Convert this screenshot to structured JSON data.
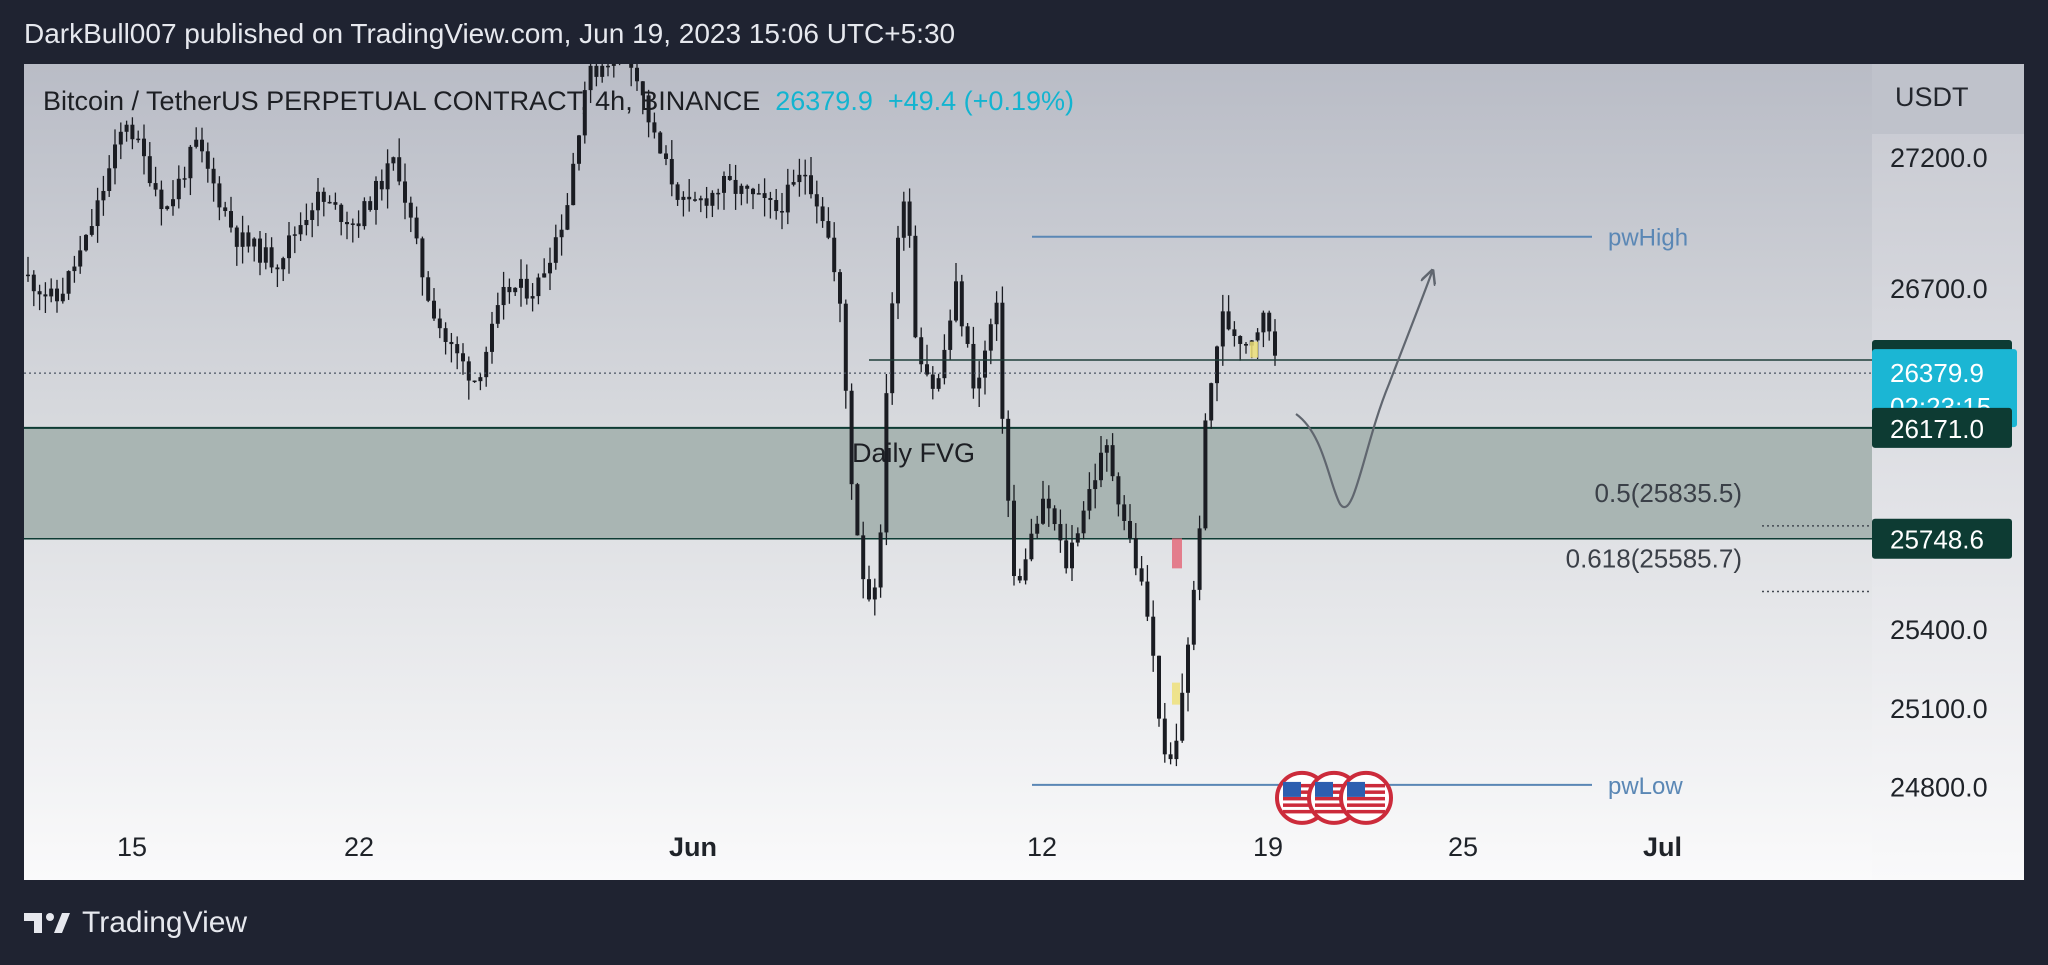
{
  "header": {
    "published": "DarkBull007 published on TradingView.com, Jun 19, 2023 15:06 UTC+5:30"
  },
  "symbol": {
    "name": "Bitcoin / TetherUS PERPETUAL CONTRACT, 4h, BINANCE",
    "price": "26379.9",
    "change": "+49.4 (+0.19%)"
  },
  "footer": {
    "brand": "TradingView"
  },
  "colors": {
    "candle": "#1a1c22",
    "zone_fill": "#a9b5b3",
    "level_line": "#5a87b5",
    "label_dark": "#0d3b33",
    "label_price": "#1bb6d4",
    "accent": "#13b4d0"
  },
  "chart_data": {
    "type": "candlestick",
    "currency": "USDT",
    "x_tick_labels": [
      "15",
      "22",
      "Jun",
      "12",
      "19",
      "25",
      "Jul"
    ],
    "y_tick_labels": [
      "27200.0",
      "26700.0",
      "25400.0",
      "25100.0",
      "24800.0"
    ],
    "ylim": [
      24600,
      27650
    ],
    "price_labels": [
      {
        "value": "26429.8",
        "style": "dark"
      },
      {
        "value": "26379.9",
        "countdown": "02:23:15",
        "style": "current"
      },
      {
        "value": "26171.0",
        "style": "dark"
      },
      {
        "value": "25748.6",
        "style": "dark"
      }
    ],
    "zone": {
      "label": "Daily FVG",
      "top": 26171.0,
      "bottom": 25748.6
    },
    "levels": [
      {
        "label": "pwHigh",
        "value": 26900
      },
      {
        "label": "pwLow",
        "value": 24810
      }
    ],
    "fib_levels": [
      {
        "label": "0.5(25835.5)",
        "value": 25835.5
      },
      {
        "label": "0.618(25585.7)",
        "value": 25585.7
      }
    ],
    "horizontal_lines": [
      {
        "value": 26429.8
      }
    ],
    "projection": "curved arrow: dip into Daily FVG then rally toward pwHigh",
    "events": [
      "US flag",
      "US flag",
      "US flag"
    ]
  }
}
